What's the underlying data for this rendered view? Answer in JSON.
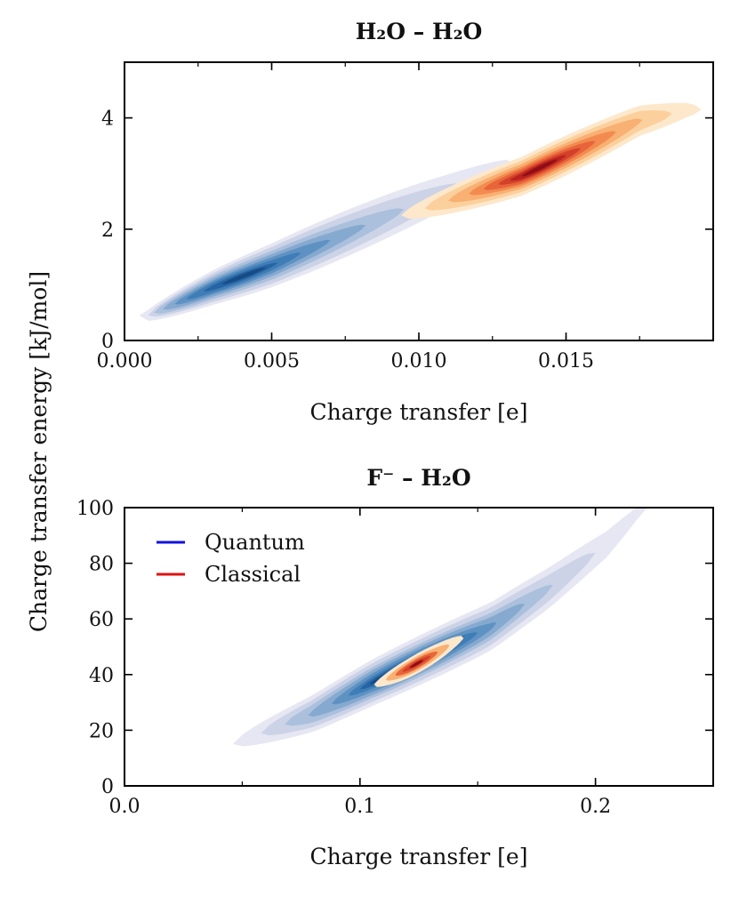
{
  "figure": {
    "ylabel": "Charge transfer energy [kJ/mol]"
  },
  "chart_data": [
    {
      "type": "heatmap",
      "title": "H₂O – H₂O",
      "xlabel": "Charge transfer [e]",
      "ylabel": "Charge transfer energy [kJ/mol]",
      "xlim": [
        0.0,
        0.02
      ],
      "ylim": [
        0,
        5
      ],
      "x_ticks": [
        0.0,
        0.005,
        0.01,
        0.015
      ],
      "x_tick_labels": [
        "0.000",
        "0.005",
        "0.010",
        "0.015"
      ],
      "y_ticks": [
        0,
        2,
        4
      ],
      "y_tick_labels": [
        "0",
        "2",
        "4"
      ],
      "grid": false,
      "series": [
        {
          "name": "Quantum",
          "colormap": "blues",
          "color": "#2a6fb0",
          "distribution": {
            "centerline": [
              [
                0.0008,
                0.45
              ],
              [
                0.003,
                0.95
              ],
              [
                0.005,
                1.35
              ],
              [
                0.007,
                1.8
              ],
              [
                0.009,
                2.25
              ],
              [
                0.0115,
                2.8
              ],
              [
                0.013,
                3.15
              ]
            ],
            "peak_x": 0.0042,
            "levels": [
              0.04,
              0.1,
              0.18,
              0.28,
              0.4,
              0.55,
              0.72,
              0.88
            ],
            "width_at_level": [
              0.42,
              0.34,
              0.26,
              0.2,
              0.15,
              0.11,
              0.07,
              0.04
            ],
            "extent_at_level": [
              [
                0.0005,
                0.0133
              ],
              [
                0.0008,
                0.0115
              ],
              [
                0.001,
                0.0095
              ],
              [
                0.0013,
                0.0082
              ],
              [
                0.0017,
                0.007
              ],
              [
                0.0021,
                0.006
              ],
              [
                0.0027,
                0.0052
              ],
              [
                0.0033,
                0.0048
              ]
            ]
          }
        },
        {
          "name": "Classical",
          "colormap": "reds",
          "color": "#e63b2a",
          "distribution": {
            "centerline": [
              [
                0.0095,
                2.25
              ],
              [
                0.0115,
                2.6
              ],
              [
                0.0135,
                2.95
              ],
              [
                0.0155,
                3.45
              ],
              [
                0.0175,
                3.95
              ],
              [
                0.0192,
                4.15
              ]
            ],
            "peak_x": 0.0141,
            "levels": [
              0.04,
              0.1,
              0.18,
              0.28,
              0.4,
              0.55,
              0.72,
              0.88
            ],
            "width_at_level": [
              0.36,
              0.29,
              0.23,
              0.18,
              0.14,
              0.1,
              0.07,
              0.04
            ],
            "extent_at_level": [
              [
                0.0094,
                0.0196
              ],
              [
                0.0102,
                0.0186
              ],
              [
                0.011,
                0.0176
              ],
              [
                0.0117,
                0.0167
              ],
              [
                0.0122,
                0.016
              ],
              [
                0.0127,
                0.0155
              ],
              [
                0.0131,
                0.015
              ],
              [
                0.0135,
                0.0147
              ]
            ]
          }
        }
      ]
    },
    {
      "type": "heatmap",
      "title": "F⁻ – H₂O",
      "xlabel": "Charge transfer [e]",
      "ylabel": "Charge transfer energy [kJ/mol]",
      "xlim": [
        0.0,
        0.25
      ],
      "ylim": [
        0,
        100
      ],
      "x_ticks": [
        0.0,
        0.1,
        0.2
      ],
      "x_tick_labels": [
        "0.0",
        "0.1",
        "0.2"
      ],
      "y_ticks": [
        0,
        20,
        40,
        60,
        80,
        100
      ],
      "y_tick_labels": [
        "0",
        "20",
        "40",
        "60",
        "80",
        "100"
      ],
      "grid": false,
      "legend": {
        "placement": "top-left",
        "entries": [
          {
            "label": "Quantum",
            "color": "#1010e0"
          },
          {
            "label": "Classical",
            "color": "#e01010"
          }
        ]
      },
      "series": [
        {
          "name": "Quantum",
          "colormap": "blues",
          "color": "#2a6fb0",
          "distribution": {
            "centerline": [
              [
                0.046,
                15
              ],
              [
                0.08,
                26
              ],
              [
                0.105,
                37
              ],
              [
                0.13,
                47
              ],
              [
                0.155,
                57
              ],
              [
                0.18,
                71
              ],
              [
                0.205,
                87
              ],
              [
                0.22,
                100
              ]
            ],
            "peak_x": 0.12,
            "levels": [
              0.04,
              0.1,
              0.18,
              0.28,
              0.4,
              0.55,
              0.72,
              0.88
            ],
            "width_at_level": [
              9.0,
              7.5,
              6.0,
              5.0,
              4.0,
              3.0,
              2.2,
              1.4
            ],
            "extent_at_level": [
              [
                0.046,
                0.222
              ],
              [
                0.058,
                0.2
              ],
              [
                0.068,
                0.182
              ],
              [
                0.078,
                0.17
              ],
              [
                0.088,
                0.158
              ],
              [
                0.095,
                0.15
              ],
              [
                0.1,
                0.142
              ],
              [
                0.104,
                0.135
              ]
            ]
          }
        },
        {
          "name": "Classical",
          "colormap": "reds",
          "color": "#e63b2a",
          "distribution": {
            "centerline": [
              [
                0.107,
                36.5
              ],
              [
                0.12,
                42
              ],
              [
                0.133,
                48
              ],
              [
                0.143,
                53
              ]
            ],
            "peak_x": 0.124,
            "levels": [
              0.04,
              0.2,
              0.4,
              0.6,
              0.8
            ],
            "width_at_level": [
              3.6,
              2.6,
              1.8,
              1.1,
              0.6
            ],
            "extent_at_level": [
              [
                0.106,
                0.144
              ],
              [
                0.111,
                0.138
              ],
              [
                0.115,
                0.133
              ],
              [
                0.118,
                0.13
              ],
              [
                0.121,
                0.127
              ]
            ]
          }
        }
      ]
    }
  ]
}
